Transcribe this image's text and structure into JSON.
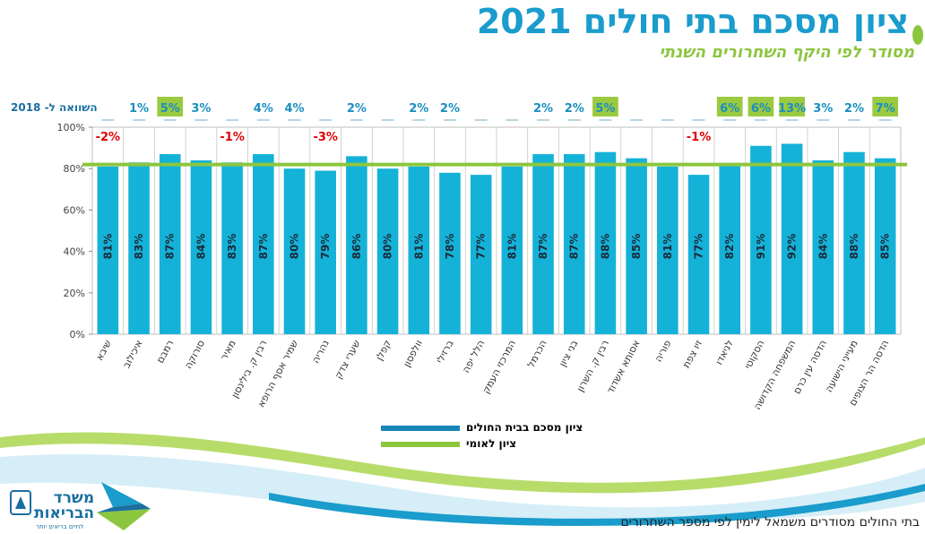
{
  "title": "ציון מסכם בתי חולים 2021",
  "subtitle": "מסודר לפי היקף השחרורים השנתי",
  "compare_label": "השוואה ל- 2018",
  "footnote": "בתי החולים מסודרים משמאל לימין לפי מספר השחרורים",
  "logo": {
    "name_line1": "משרד",
    "name_line2": "הבריאות",
    "tagline": "לחיים בריאים יותר"
  },
  "colors": {
    "bar": "#15b2d8",
    "national_line": "#8cc63f",
    "title": "#1a9ccc",
    "negative_change": "#e00000",
    "positive_change": "#1a8fc0",
    "highlight_box": "#9bc93f",
    "legend_hospital": "#1a86b8"
  },
  "chart_data": {
    "type": "bar",
    "categories": [
      "שיבא",
      "איכילוב",
      "רמבם",
      "סורוקה",
      "מאיר",
      "רבין ק. בילינסון",
      "שמיר אסף הרופא",
      "נהריה",
      "שערי צדק",
      "קפלן",
      "וולפסון",
      "ברזילי",
      "הלל יפה",
      "המרכזי העמק",
      "הכרמל",
      "בני ציון",
      "רבין ק. השרון",
      "אסותא אשדוד",
      "פוריה",
      "זיו צפת",
      "לניאדו",
      "הסקוטי",
      "המשפחה הקדושה",
      "הדסה עין כרם",
      "מעייני הישועה",
      "הדסה הר הצופים"
    ],
    "values": [
      81,
      83,
      87,
      84,
      83,
      87,
      80,
      79,
      86,
      80,
      81,
      78,
      77,
      81,
      87,
      87,
      88,
      85,
      81,
      77,
      82,
      91,
      92,
      84,
      88,
      85
    ],
    "value_labels": [
      "81%",
      "83%",
      "87%",
      "84%",
      "83%",
      "87%",
      "80%",
      "79%",
      "86%",
      "80%",
      "81%",
      "78%",
      "77%",
      "81%",
      "87%",
      "87%",
      "88%",
      "85%",
      "81%",
      "77%",
      "82%",
      "91%",
      "92%",
      "84%",
      "88%",
      "85%"
    ],
    "change_vs_2018": [
      "-2%",
      "1%",
      "5%",
      "3%",
      "-1%",
      "4%",
      "4%",
      "-3%",
      "2%",
      "",
      "2%",
      "2%",
      "",
      "",
      "2%",
      "2%",
      "5%",
      "",
      "",
      "-1%",
      "6%",
      "6%",
      "13%",
      "3%",
      "2%",
      "7%"
    ],
    "highlighted_changes": [
      false,
      false,
      true,
      false,
      false,
      false,
      false,
      false,
      false,
      false,
      false,
      false,
      false,
      false,
      false,
      false,
      true,
      false,
      false,
      false,
      true,
      true,
      true,
      false,
      false,
      true
    ],
    "national_score": 82,
    "ylim": [
      0,
      100
    ],
    "yticks": [
      "0%",
      "20%",
      "40%",
      "60%",
      "80%",
      "100%"
    ],
    "grid": true,
    "series": [
      {
        "name": "ציון מסכם בבית החולים",
        "type": "bar"
      },
      {
        "name": "ציון לאומי",
        "type": "line"
      }
    ],
    "legend_position": "bottom-center"
  }
}
